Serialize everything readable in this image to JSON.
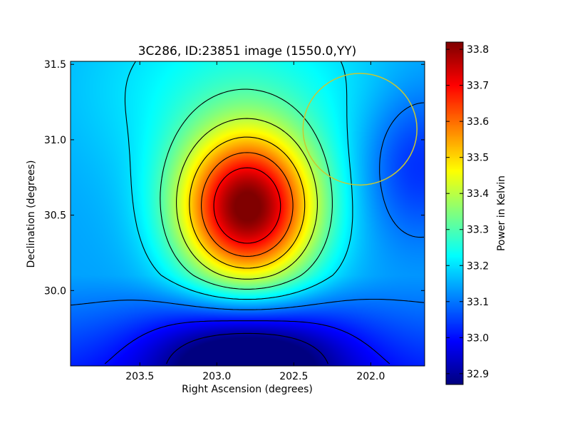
{
  "chart_data": {
    "type": "heatmap",
    "title": "3C286, ID:23851 image (1550.0,YY)",
    "xlabel": "Right Ascension (degrees)",
    "ylabel": "Declination (degrees)",
    "x_range": [
      203.95,
      201.65
    ],
    "y_range": [
      29.5,
      31.52
    ],
    "x_ticks": [
      {
        "value": 203.5,
        "label": "203.5"
      },
      {
        "value": 203.0,
        "label": "203.0"
      },
      {
        "value": 202.5,
        "label": "202.5"
      },
      {
        "value": 202.0,
        "label": "202.0"
      }
    ],
    "y_ticks": [
      {
        "value": 30.0,
        "label": "30.0"
      },
      {
        "value": 30.5,
        "label": "30.5"
      },
      {
        "value": 31.0,
        "label": "31.0"
      },
      {
        "value": 31.5,
        "label": "31.5"
      }
    ],
    "colorbar": {
      "label": "Power in Kelvin",
      "range": [
        32.87,
        33.82
      ],
      "colormap": "jet",
      "ticks": [
        {
          "value": 32.9,
          "label": "32.9"
        },
        {
          "value": 33.0,
          "label": "33.0"
        },
        {
          "value": 33.1,
          "label": "33.1"
        },
        {
          "value": 33.2,
          "label": "33.2"
        },
        {
          "value": 33.3,
          "label": "33.3"
        },
        {
          "value": 33.4,
          "label": "33.4"
        },
        {
          "value": 33.5,
          "label": "33.5"
        },
        {
          "value": 33.6,
          "label": "33.6"
        },
        {
          "value": 33.7,
          "label": "33.7"
        },
        {
          "value": 33.8,
          "label": "33.8"
        }
      ]
    },
    "peak": {
      "ra": 202.8,
      "dec": 30.54,
      "value": 33.82
    },
    "minimum": {
      "ra": 202.8,
      "dec": 29.55,
      "value": 32.87
    },
    "contour_levels": [
      32.9,
      33.0,
      33.1,
      33.2,
      33.3,
      33.4,
      33.5,
      33.6,
      33.7
    ],
    "circle_marker": {
      "ra_center": 202.07,
      "dec_center": 31.07,
      "radius_deg": 0.37,
      "color": "#c8c832"
    },
    "grid": false
  }
}
